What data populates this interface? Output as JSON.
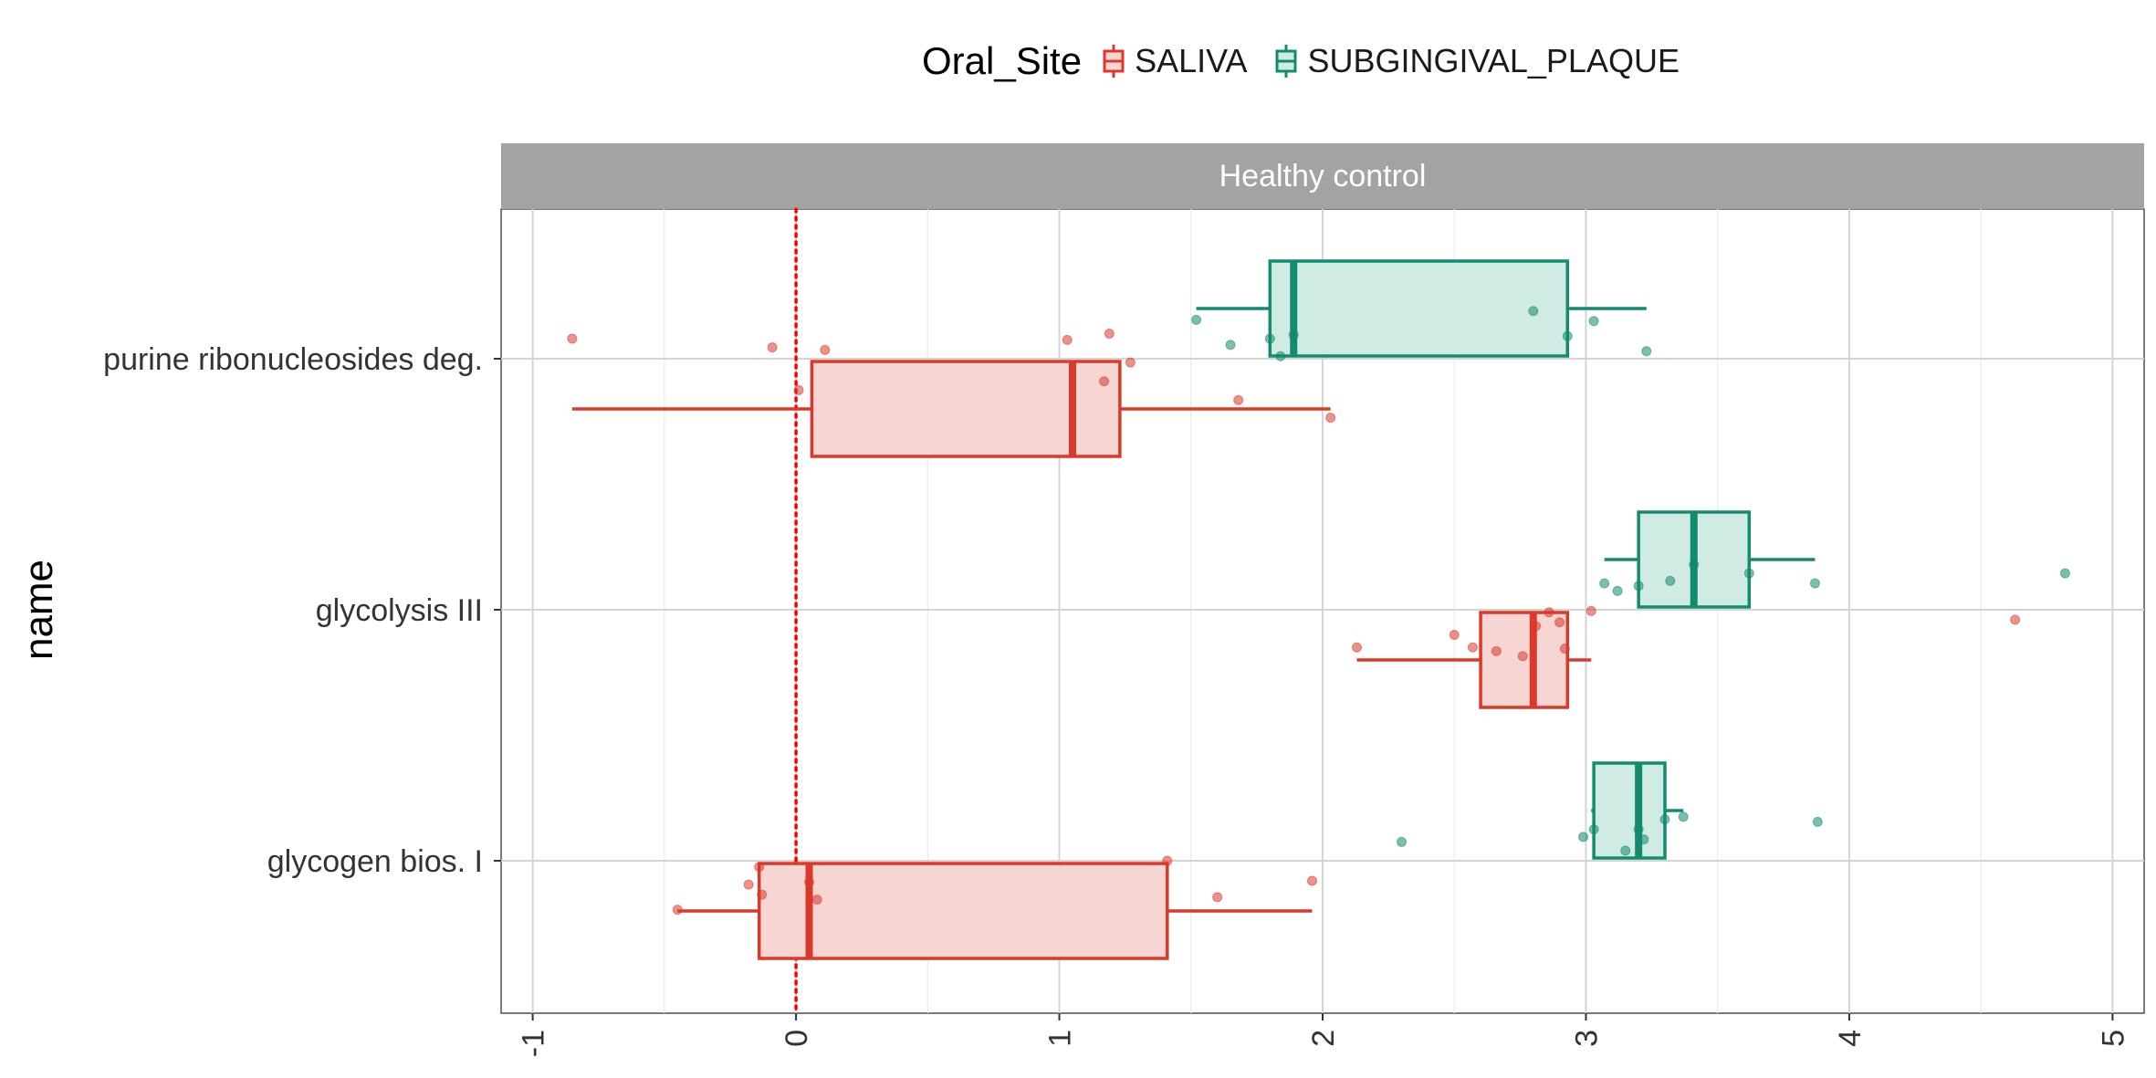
{
  "legend": {
    "title": "Oral_Site",
    "items": [
      {
        "label": "SALIVA",
        "color": "#d93a2b",
        "fill": "#f6d5d2"
      },
      {
        "label": "SUBGINGIVAL_PLAQUE",
        "color": "#138b6e",
        "fill": "#d0ebe3"
      }
    ]
  },
  "chart_data": {
    "type": "boxplot",
    "facet": "Healthy control",
    "ylabel": "name",
    "xlabel": "",
    "xlim": [
      -1.12,
      5.12
    ],
    "x_ticks": [
      -1,
      0,
      1,
      2,
      3,
      4,
      5
    ],
    "x_tick_labels": [
      "-1",
      "0",
      "1",
      "2",
      "3",
      "4",
      "5"
    ],
    "reference_line": {
      "x": 0,
      "style": "dotted",
      "color": "#ff0000"
    },
    "grid": true,
    "legend_position": "top",
    "categories": [
      "purine ribonucleosides deg.",
      "glycolysis III",
      "glycogen bios. I"
    ],
    "series": [
      {
        "name": "SALIVA",
        "color": "#d93a2b",
        "boxes": [
          {
            "category": "purine ribonucleosides deg.",
            "whisker_low": -0.85,
            "q1": 0.06,
            "median": 1.05,
            "q3": 1.23,
            "whisker_high": 2.03,
            "points": [
              [
                -0.85,
                -0.16
              ],
              [
                -0.09,
                -0.09
              ],
              [
                0.01,
                0.25
              ],
              [
                0.11,
                -0.07
              ],
              [
                1.03,
                -0.15
              ],
              [
                1.17,
                0.18
              ],
              [
                1.19,
                -0.2
              ],
              [
                1.27,
                0.03
              ],
              [
                1.68,
                0.33
              ],
              [
                2.03,
                0.47
              ]
            ]
          },
          {
            "category": "glycolysis III",
            "whisker_low": 2.13,
            "q1": 2.6,
            "median": 2.8,
            "q3": 2.93,
            "whisker_high": 3.02,
            "points": [
              [
                2.13,
                0.3
              ],
              [
                2.5,
                0.2
              ],
              [
                2.57,
                0.3
              ],
              [
                2.66,
                0.33
              ],
              [
                2.76,
                0.37
              ],
              [
                2.81,
                0.13
              ],
              [
                2.86,
                0.02
              ],
              [
                2.9,
                0.1
              ],
              [
                2.92,
                0.31
              ],
              [
                3.02,
                0.01
              ],
              [
                4.63,
                0.08
              ]
            ]
          },
          {
            "category": "glycogen bios. I",
            "whisker_low": -0.45,
            "q1": -0.14,
            "median": 0.05,
            "q3": 1.41,
            "whisker_high": 1.96,
            "points": [
              [
                -0.45,
                0.39
              ],
              [
                -0.18,
                0.19
              ],
              [
                -0.14,
                0.05
              ],
              [
                -0.13,
                0.27
              ],
              [
                0.05,
                0.17
              ],
              [
                0.08,
                0.31
              ],
              [
                1.41,
                0.0
              ],
              [
                1.6,
                0.29
              ],
              [
                1.96,
                0.16
              ]
            ]
          }
        ]
      },
      {
        "name": "SUBGINGIVAL_PLAQUE",
        "color": "#138b6e",
        "boxes": [
          {
            "category": "purine ribonucleosides deg.",
            "whisker_low": 1.52,
            "q1": 1.8,
            "median": 1.89,
            "q3": 2.93,
            "whisker_high": 3.23,
            "points": [
              [
                1.52,
                -0.31
              ],
              [
                1.65,
                -0.11
              ],
              [
                1.8,
                -0.16
              ],
              [
                1.84,
                -0.02
              ],
              [
                1.89,
                -0.19
              ],
              [
                2.8,
                -0.38
              ],
              [
                2.93,
                -0.18
              ],
              [
                3.03,
                -0.3
              ],
              [
                3.23,
                -0.06
              ]
            ]
          },
          {
            "category": "glycolysis III",
            "whisker_low": 3.07,
            "q1": 3.2,
            "median": 3.41,
            "q3": 3.62,
            "whisker_high": 3.87,
            "points": [
              [
                3.07,
                -0.21
              ],
              [
                3.12,
                -0.15
              ],
              [
                3.2,
                -0.19
              ],
              [
                3.32,
                -0.23
              ],
              [
                3.41,
                -0.36
              ],
              [
                3.62,
                -0.29
              ],
              [
                3.87,
                -0.21
              ],
              [
                4.82,
                -0.29
              ]
            ]
          },
          {
            "category": "glycogen bios. I",
            "whisker_low": 3.02,
            "q1": 3.03,
            "median": 3.2,
            "q3": 3.3,
            "whisker_high": 3.37,
            "points": [
              [
                2.3,
                -0.15
              ],
              [
                2.99,
                -0.19
              ],
              [
                3.03,
                -0.25
              ],
              [
                3.15,
                -0.08
              ],
              [
                3.2,
                -0.25
              ],
              [
                3.22,
                -0.17
              ],
              [
                3.3,
                -0.33
              ],
              [
                3.37,
                -0.35
              ],
              [
                3.88,
                -0.31
              ]
            ]
          }
        ]
      }
    ]
  }
}
